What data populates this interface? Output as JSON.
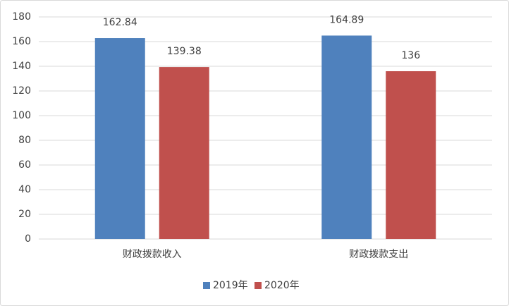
{
  "chart_data": {
    "type": "bar",
    "categories": [
      "财政拨款收入",
      "财政拨款支出"
    ],
    "series": [
      {
        "name": "2019年",
        "color": "#4f81bd",
        "values": [
          162.84,
          164.89
        ]
      },
      {
        "name": "2020年",
        "color": "#c0504d",
        "values": [
          139.38,
          136
        ]
      }
    ],
    "ylim": [
      0,
      180
    ],
    "yticks": [
      0,
      20,
      40,
      60,
      80,
      100,
      120,
      140,
      160,
      180
    ],
    "grid": true,
    "legend": "bottom"
  }
}
